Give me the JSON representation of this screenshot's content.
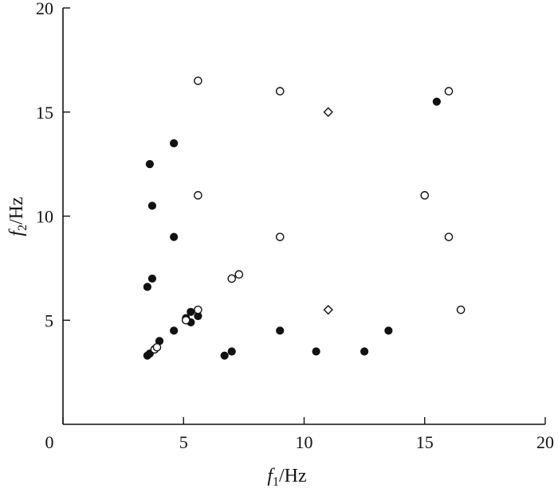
{
  "chart_data": {
    "type": "scatter",
    "title": "",
    "xlabel": {
      "main": "f",
      "sub": "1",
      "unit": "/Hz"
    },
    "ylabel": {
      "main": "f",
      "sub": "2",
      "unit": "/Hz"
    },
    "xlim": [
      0,
      20
    ],
    "ylim": [
      0,
      20
    ],
    "xticks": [
      0,
      5,
      10,
      15,
      20
    ],
    "yticks": [
      5,
      10,
      15,
      20
    ],
    "grid": false,
    "legend": "none",
    "series": [
      {
        "marker": "filled-circle",
        "color": "#111111",
        "points": [
          [
            3.6,
            12.5
          ],
          [
            4.6,
            13.5
          ],
          [
            3.7,
            10.5
          ],
          [
            4.6,
            9.0
          ],
          [
            3.7,
            7.0
          ],
          [
            3.5,
            6.6
          ],
          [
            5.3,
            5.4
          ],
          [
            5.6,
            5.2
          ],
          [
            5.3,
            4.9
          ],
          [
            5.1,
            5.1
          ],
          [
            4.6,
            4.5
          ],
          [
            4.0,
            4.0
          ],
          [
            3.5,
            3.3
          ],
          [
            3.6,
            3.4
          ],
          [
            6.7,
            3.3
          ],
          [
            7.0,
            3.5
          ],
          [
            9.0,
            4.5
          ],
          [
            10.5,
            3.5
          ],
          [
            12.5,
            3.5
          ],
          [
            13.5,
            4.5
          ],
          [
            15.5,
            15.5
          ]
        ]
      },
      {
        "marker": "open-circle",
        "color": "#111111",
        "points": [
          [
            5.6,
            16.5
          ],
          [
            9.0,
            16.0
          ],
          [
            16.0,
            16.0
          ],
          [
            5.6,
            11.0
          ],
          [
            15.0,
            11.0
          ],
          [
            9.0,
            9.0
          ],
          [
            16.0,
            9.0
          ],
          [
            7.0,
            7.0
          ],
          [
            7.3,
            7.2
          ],
          [
            5.6,
            5.5
          ],
          [
            5.1,
            5.0
          ],
          [
            16.5,
            5.5
          ],
          [
            3.8,
            3.6
          ],
          [
            3.9,
            3.7
          ]
        ]
      },
      {
        "marker": "open-diamond",
        "color": "#111111",
        "points": [
          [
            11.0,
            15.0
          ],
          [
            11.0,
            5.5
          ]
        ]
      }
    ]
  }
}
